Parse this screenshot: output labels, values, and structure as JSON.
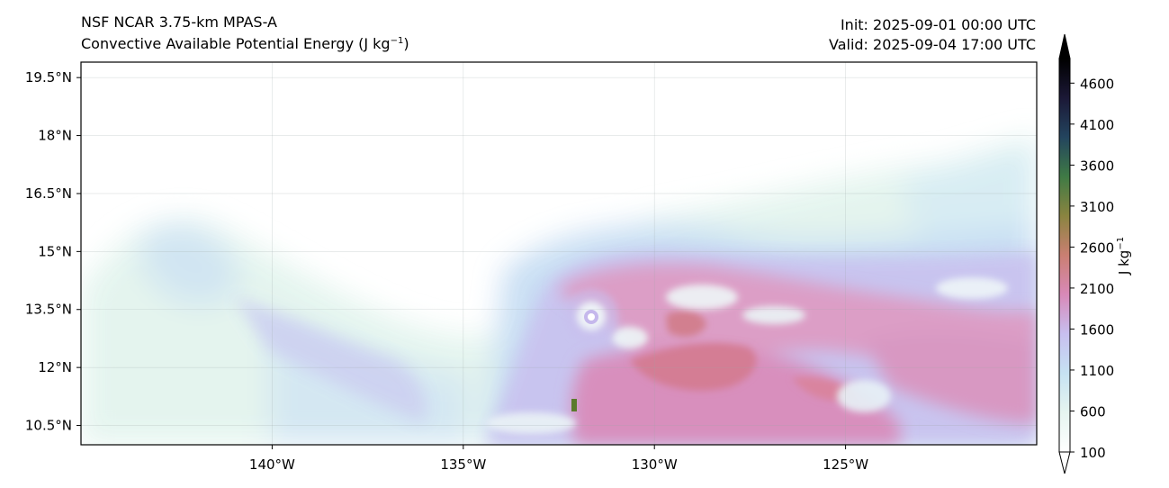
{
  "header": {
    "model": "NSF NCAR 3.75-km MPAS-A",
    "field": "Convective Available Potential Energy (J kg",
    "field_unit_exp": "−1",
    "field_close": ")",
    "init": "Init: 2025-09-01 00:00 UTC",
    "valid": "Valid: 2025-09-04 17:00 UTC"
  },
  "map": {
    "lon_range": [
      -145,
      -120
    ],
    "lat_range": [
      10,
      19.9
    ],
    "lon_ticks": [
      -140,
      -135,
      -130,
      -125
    ],
    "lon_tick_labels": [
      "140°W",
      "135°W",
      "130°W",
      "125°W"
    ],
    "lat_ticks": [
      10.5,
      12,
      13.5,
      15,
      16.5,
      18,
      19.5
    ],
    "lat_tick_labels": [
      "10.5°N",
      "12°N",
      "13.5°N",
      "15°N",
      "16.5°N",
      "18°N",
      "19.5°N"
    ],
    "gridlines": true
  },
  "colorbar": {
    "label": "J kg",
    "label_exp": "−1",
    "min": 100,
    "max": 4900,
    "ticks": [
      100,
      600,
      1100,
      1600,
      2100,
      2600,
      3100,
      3600,
      4100,
      4600
    ],
    "extend": "both",
    "colors": [
      "#ffffff",
      "#e6f5f0",
      "#c6e2f2",
      "#c7bff0",
      "#d889b8",
      "#ca7f72",
      "#8a8440",
      "#3f7a45",
      "#23445e",
      "#1b1836",
      "#000000"
    ]
  }
}
